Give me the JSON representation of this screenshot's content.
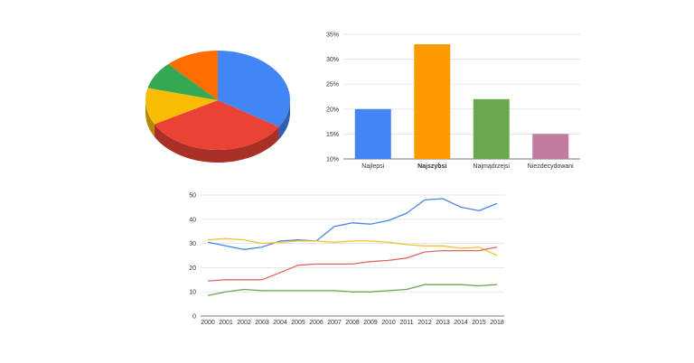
{
  "chart_data": [
    {
      "type": "pie",
      "three_d": true,
      "values": [
        34,
        33,
        12,
        9,
        12
      ],
      "colors": [
        "#4285f4",
        "#ea4335",
        "#fbbc04",
        "#34a853",
        "#ff6d01"
      ],
      "legend": "none"
    },
    {
      "type": "bar",
      "categories": [
        "Najlepsi",
        "Najszybsi",
        "Najmądrzejsi",
        "Niezdecydowani"
      ],
      "highlight_category": "Najszybsi",
      "values": [
        20,
        33,
        22,
        15
      ],
      "colors": [
        "#4285f4",
        "#ff9900",
        "#6aa84f",
        "#c27ba0"
      ],
      "ylim": [
        10,
        35
      ],
      "yticks": [
        10,
        15,
        20,
        25,
        30,
        35
      ],
      "ytick_labels": [
        "10%",
        "15%",
        "20%",
        "25%",
        "30%",
        "35%"
      ],
      "grid": true,
      "legend": "none"
    },
    {
      "type": "line",
      "x": [
        "2000",
        "2001",
        "2002",
        "2003",
        "2004",
        "2005",
        "2006",
        "2007",
        "2008",
        "2009",
        "2010",
        "2011",
        "2012",
        "2013",
        "2014",
        "2015",
        "2018"
      ],
      "ylim": [
        0,
        50
      ],
      "yticks": [
        0,
        10,
        20,
        30,
        40,
        50
      ],
      "grid": true,
      "legend": "none",
      "series": [
        {
          "color": "#4a86e8",
          "values": [
            30.5,
            29,
            27.5,
            28.5,
            31,
            31.5,
            31,
            37,
            38.5,
            38,
            39.5,
            42.5,
            48,
            48.5,
            45,
            43.5,
            46.5
          ]
        },
        {
          "color": "#f1c232",
          "values": [
            31.5,
            32,
            31.5,
            30,
            30.5,
            31,
            31,
            30.5,
            31,
            31,
            30.5,
            29.5,
            29,
            29,
            28,
            28.5,
            25
          ]
        },
        {
          "color": "#e06666",
          "values": [
            14.5,
            15,
            15,
            15,
            18,
            21,
            21.5,
            21.5,
            21.5,
            22.5,
            23,
            24,
            26.5,
            27,
            27,
            27,
            28.5
          ]
        },
        {
          "color": "#6aa84f",
          "values": [
            8.5,
            10,
            11,
            10.5,
            10.5,
            10.5,
            10.5,
            10.5,
            10,
            10,
            10.5,
            11,
            13,
            13,
            13,
            12.5,
            13
          ]
        }
      ]
    }
  ]
}
